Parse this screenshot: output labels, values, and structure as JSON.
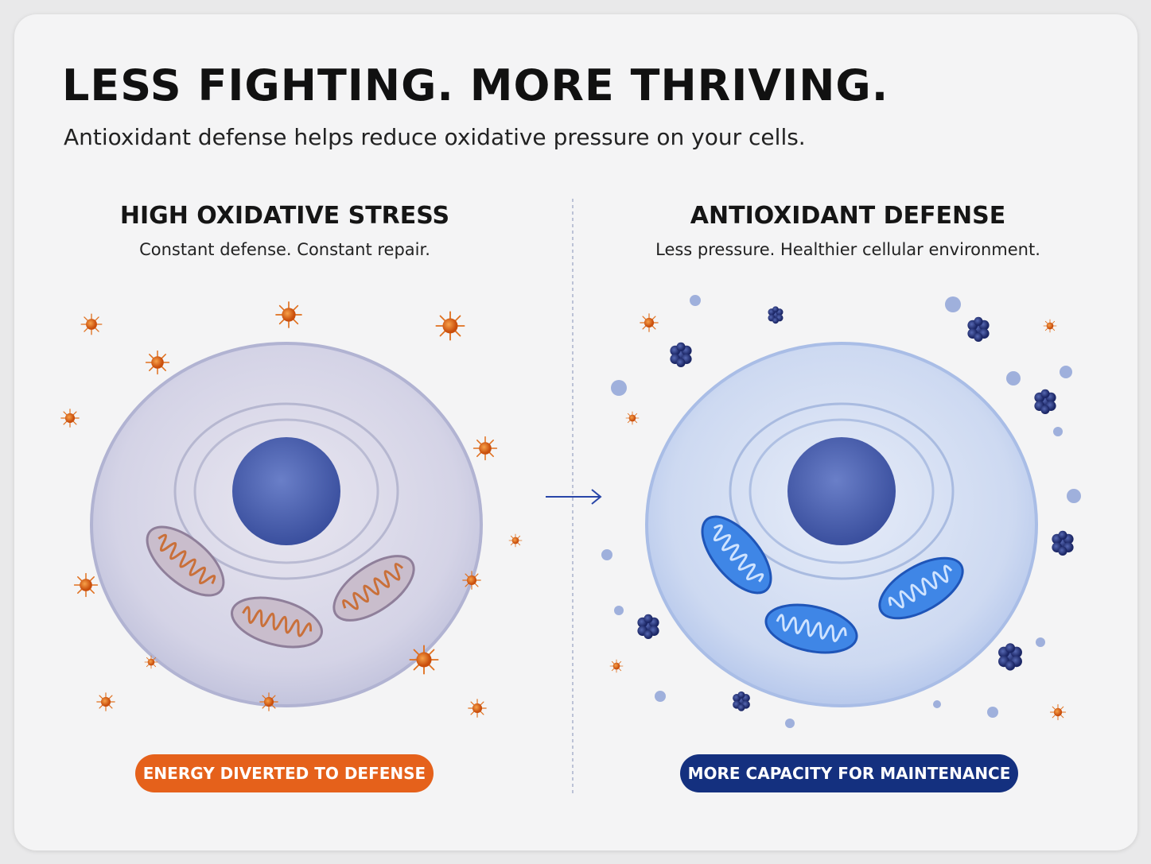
{
  "header": {
    "title": "LESS FIGHTING. MORE THRIVING.",
    "subtitle": "Antioxidant defense helps reduce oxidative pressure on your cells."
  },
  "panels": [
    {
      "heading": "HIGH OXIDATIVE STRESS",
      "caption": "Constant defense. Constant repair.",
      "badge": "ENERGY DIVERTED TO DEFENSE"
    },
    {
      "heading": "ANTIOXIDANT DEFENSE",
      "caption": "Less pressure. Healthier cellular environment.",
      "badge": "MORE CAPACITY FOR MAINTENANCE"
    }
  ]
}
